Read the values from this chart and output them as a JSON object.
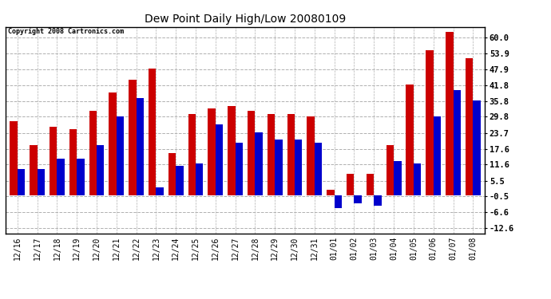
{
  "title": "Dew Point Daily High/Low 20080109",
  "copyright": "Copyright 2008 Cartronics.com",
  "dates": [
    "12/16",
    "12/17",
    "12/18",
    "12/19",
    "12/20",
    "12/21",
    "12/22",
    "12/23",
    "12/24",
    "12/25",
    "12/26",
    "12/27",
    "12/28",
    "12/29",
    "12/30",
    "12/31",
    "01/01",
    "01/02",
    "01/03",
    "01/04",
    "01/05",
    "01/06",
    "01/07",
    "01/08"
  ],
  "highs": [
    28,
    19,
    26,
    25,
    32,
    39,
    44,
    48,
    16,
    31,
    33,
    34,
    32,
    31,
    31,
    30,
    2,
    8,
    8,
    19,
    42,
    55,
    62,
    52
  ],
  "lows": [
    10,
    10,
    14,
    14,
    19,
    30,
    37,
    3,
    11,
    12,
    27,
    20,
    24,
    21,
    21,
    20,
    -5,
    -3,
    -4,
    13,
    12,
    30,
    40,
    36
  ],
  "high_color": "#cc0000",
  "low_color": "#0000cc",
  "bg_color": "#ffffff",
  "plot_bg_color": "#ffffff",
  "grid_color": "#b0b0b0",
  "yticks": [
    -12.6,
    -6.6,
    -0.5,
    5.5,
    11.6,
    17.6,
    23.7,
    29.8,
    35.8,
    41.8,
    47.9,
    53.9,
    60.0
  ],
  "ytick_labels": [
    "-12.6",
    "-6.6",
    "-0.5",
    "5.5",
    "11.6",
    "17.6",
    "23.7",
    "29.8",
    "35.8",
    "41.8",
    "47.9",
    "53.9",
    "60.0"
  ],
  "ymin": -14.5,
  "ymax": 64,
  "bar_width": 0.38
}
